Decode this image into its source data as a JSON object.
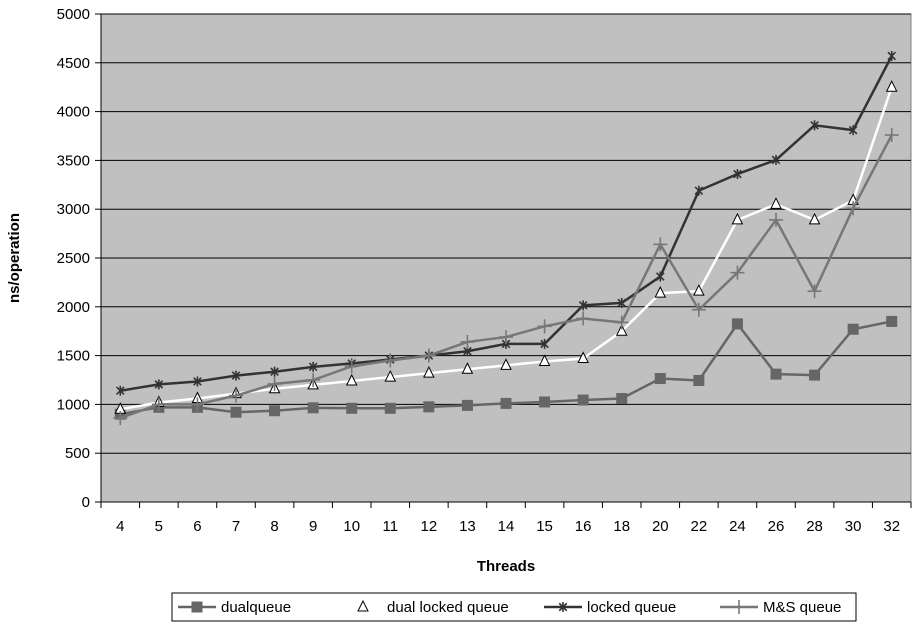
{
  "chart_data": {
    "type": "line",
    "title": "",
    "xlabel": "Threads",
    "ylabel": "ns/operation",
    "ylim": [
      0,
      5000
    ],
    "yticks": [
      0,
      500,
      1000,
      1500,
      2000,
      2500,
      3000,
      3500,
      4000,
      4500,
      5000
    ],
    "grid": "horizontal",
    "legend_position": "bottom",
    "plot_background": "#c0c0c0",
    "categories": [
      "4",
      "5",
      "6",
      "7",
      "8",
      "9",
      "10",
      "11",
      "12",
      "13",
      "14",
      "15",
      "16",
      "18",
      "20",
      "22",
      "24",
      "26",
      "28",
      "30",
      "32"
    ],
    "series": [
      {
        "name": "dualqueue",
        "color": "#666666",
        "marker": "square",
        "values": [
          900,
          970,
          970,
          920,
          935,
          965,
          960,
          960,
          975,
          990,
          1010,
          1025,
          1045,
          1060,
          1265,
          1245,
          1825,
          1310,
          1300,
          1770,
          1850
        ]
      },
      {
        "name": "dual locked queue",
        "color": "#ffffff",
        "marker": "triangle",
        "values": [
          950,
          1020,
          1060,
          1110,
          1160,
          1200,
          1240,
          1280,
          1320,
          1360,
          1400,
          1440,
          1470,
          1750,
          2140,
          2160,
          2890,
          3050,
          2890,
          3090,
          4250
        ]
      },
      {
        "name": "locked queue",
        "color": "#333333",
        "marker": "asterisk",
        "values": [
          1140,
          1205,
          1235,
          1295,
          1335,
          1385,
          1420,
          1460,
          1500,
          1545,
          1620,
          1620,
          2015,
          2040,
          2310,
          3190,
          3360,
          3505,
          3860,
          3810,
          4570
        ]
      },
      {
        "name": "M&S queue",
        "color": "#777777",
        "marker": "plus",
        "values": [
          860,
          1000,
          1000,
          1090,
          1210,
          1250,
          1390,
          1450,
          1500,
          1640,
          1690,
          1800,
          1880,
          1840,
          2640,
          1970,
          2350,
          2890,
          2160,
          3010,
          3760
        ]
      }
    ]
  }
}
